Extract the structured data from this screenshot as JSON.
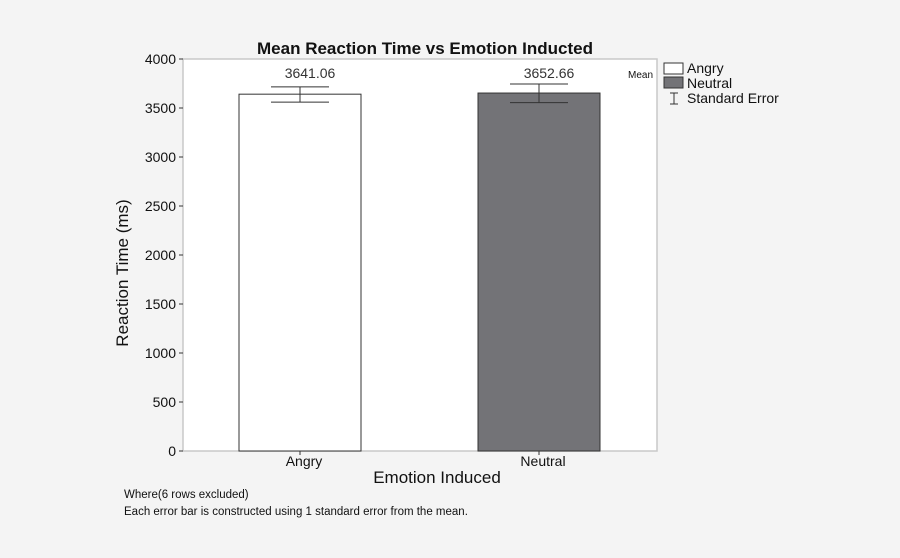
{
  "chart_data": {
    "type": "bar",
    "title": "Mean Reaction Time vs Emotion Inducted",
    "xlabel": "Emotion Induced",
    "ylabel": "Reaction Time (ms)",
    "ylim": [
      0,
      4000
    ],
    "yticks": [
      0,
      500,
      1000,
      1500,
      2000,
      2500,
      3000,
      3500,
      4000
    ],
    "categories": [
      "Angry",
      "Neutral"
    ],
    "values": [
      3641.06,
      3652.66
    ],
    "value_labels": [
      "3641.06",
      "3652.66"
    ],
    "error_low": [
      3560,
      3555
    ],
    "error_high": [
      3715,
      3745
    ],
    "bar_colors": [
      "#ffffff",
      "#737377"
    ],
    "grid": false,
    "legend": {
      "placement": "outside-top-right",
      "title": "Mean",
      "entries": [
        {
          "label": "Angry",
          "color": "#ffffff",
          "marker": "box"
        },
        {
          "label": "Neutral",
          "color": "#737377",
          "marker": "box"
        },
        {
          "label": "Standard Error",
          "marker": "errorbar"
        }
      ]
    }
  },
  "notes": [
    "Where(6 rows excluded)",
    "Each error bar is constructed using 1 standard error from the mean."
  ]
}
